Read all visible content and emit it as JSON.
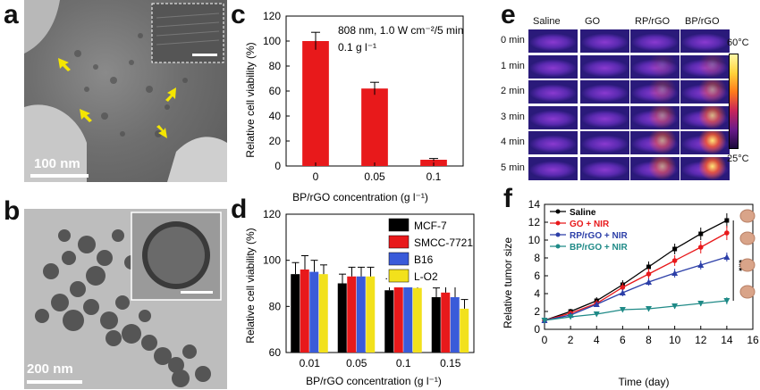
{
  "panels": {
    "a": {
      "letter": "a",
      "scale_label": "100 nm"
    },
    "b": {
      "letter": "b",
      "scale_label": "200 nm"
    },
    "c": {
      "letter": "c"
    },
    "d": {
      "letter": "d"
    },
    "e": {
      "letter": "e",
      "columns": [
        "Saline",
        "GO",
        "RP/rGO",
        "BP/rGO"
      ],
      "rows": [
        "0 min",
        "1 min",
        "2 min",
        "3 min",
        "4 min",
        "5 min"
      ],
      "scale_max": "60°C",
      "scale_min": "25°C"
    },
    "f": {
      "letter": "f"
    }
  },
  "chart_data": [
    {
      "type": "bar",
      "panel": "c",
      "categories": [
        "0",
        "0.05",
        "0.1"
      ],
      "values": [
        100,
        62,
        5
      ],
      "errors": [
        7,
        5,
        1
      ],
      "xlabel": "BP/rGO concentration (g l⁻¹)",
      "ylabel": "Relative cell viability (%)",
      "ylim": [
        0,
        120
      ],
      "yticks": [
        0,
        20,
        40,
        60,
        80,
        100,
        120
      ],
      "annotation": [
        "808 nm, 1.0 W cm⁻²/5 min",
        "0.1 g l⁻¹"
      ],
      "color": "#e8191b"
    },
    {
      "type": "bar",
      "panel": "d",
      "categories": [
        "0.01",
        "0.05",
        "0.1",
        "0.15"
      ],
      "series": [
        {
          "name": "MCF-7",
          "values": [
            94,
            90,
            87,
            84
          ],
          "errors": [
            5,
            4,
            5,
            4
          ],
          "color": "#000000"
        },
        {
          "name": "SMCC-7721",
          "values": [
            96,
            93,
            90,
            86
          ],
          "errors": [
            6,
            4,
            4,
            4
          ],
          "color": "#e8191b"
        },
        {
          "name": "B16",
          "values": [
            95,
            93,
            91,
            84
          ],
          "errors": [
            5,
            4,
            6,
            5
          ],
          "color": "#3a5bd9"
        },
        {
          "name": "L-O2",
          "values": [
            94,
            93,
            88,
            79
          ],
          "errors": [
            4,
            4,
            6,
            4
          ],
          "color": "#f2e11c"
        }
      ],
      "xlabel": "BP/rGO concentration (g l⁻¹)",
      "ylabel": "Relative cell viability (%)",
      "ylim": [
        60,
        120
      ],
      "yticks": [
        60,
        80,
        100,
        120
      ],
      "legend": "top-right"
    },
    {
      "type": "line",
      "panel": "f",
      "x": [
        0,
        2,
        4,
        6,
        8,
        10,
        12,
        14
      ],
      "series": [
        {
          "name": "Saline",
          "values": [
            1,
            2,
            3.2,
            5,
            7,
            9,
            10.7,
            12.2
          ],
          "errors": [
            0.1,
            0.3,
            0.4,
            0.5,
            0.6,
            0.6,
            0.7,
            0.8
          ],
          "color": "#000000",
          "marker": "square"
        },
        {
          "name": "GO + NIR",
          "values": [
            1,
            1.8,
            2.9,
            4.7,
            6.2,
            7.7,
            9.2,
            10.8
          ],
          "errors": [
            0.1,
            0.3,
            0.4,
            0.5,
            0.6,
            0.6,
            0.7,
            0.8
          ],
          "color": "#e8191b",
          "marker": "circle"
        },
        {
          "name": "RP/rGO + NIR",
          "values": [
            1,
            1.6,
            2.8,
            4.1,
            5.3,
            6.3,
            7.2,
            8.1
          ],
          "errors": [
            0.1,
            0.3,
            0.3,
            0.4,
            0.4,
            0.5,
            0.5,
            0.5
          ],
          "color": "#2c3fa8",
          "marker": "triangle"
        },
        {
          "name": "BP/rGO + NIR",
          "values": [
            1,
            1.4,
            1.7,
            2.2,
            2.3,
            2.6,
            2.9,
            3.2
          ],
          "errors": [
            0.1,
            0.2,
            0.2,
            0.2,
            0.3,
            0.3,
            0.3,
            0.4
          ],
          "color": "#1f8a87",
          "marker": "triangle-down"
        }
      ],
      "xlabel": "Time (day)",
      "ylabel": "Relative tumor size",
      "xlim": [
        0,
        16
      ],
      "ylim": [
        0,
        14
      ],
      "xticks": [
        0,
        2,
        4,
        6,
        8,
        10,
        12,
        14,
        16
      ],
      "yticks": [
        0,
        2,
        4,
        6,
        8,
        10,
        12,
        14
      ],
      "significance": "***",
      "legend": "top-left"
    }
  ]
}
